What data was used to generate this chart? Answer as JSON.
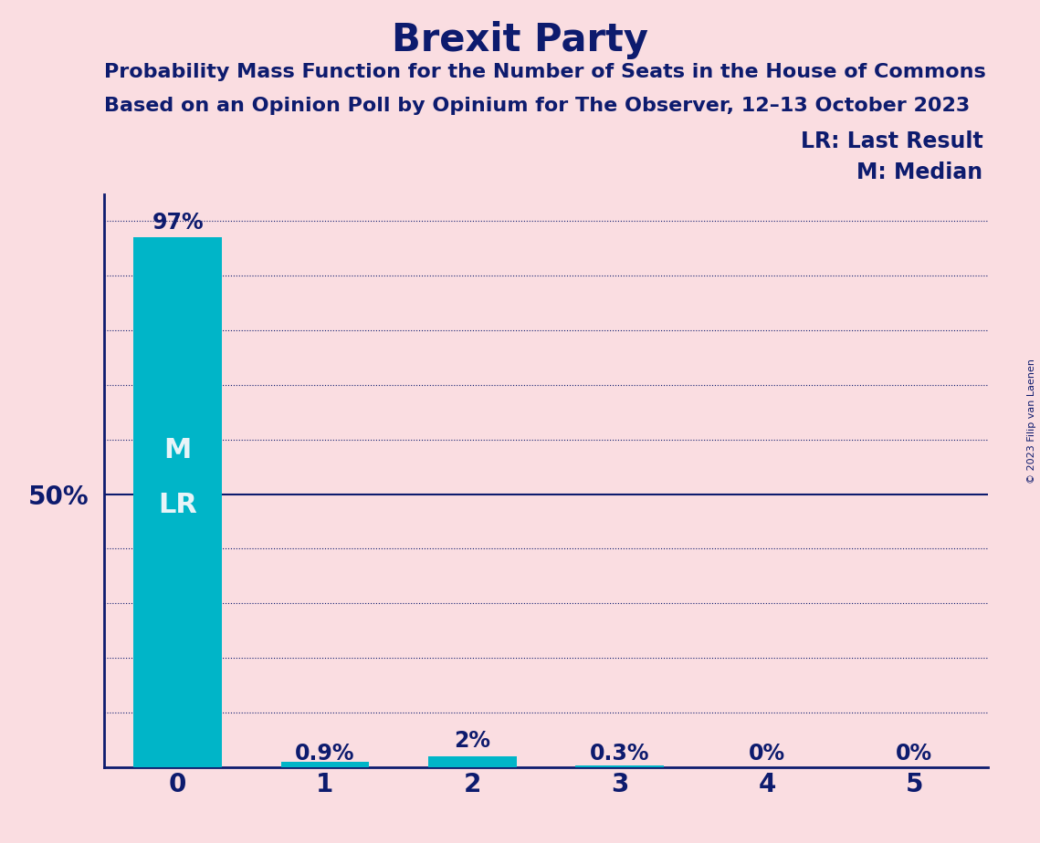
{
  "title": "Brexit Party",
  "subtitle1": "Probability Mass Function for the Number of Seats in the House of Commons",
  "subtitle2": "Based on an Opinion Poll by Opinium for The Observer, 12–13 October 2023",
  "copyright": "© 2023 Filip van Laenen",
  "categories": [
    0,
    1,
    2,
    3,
    4,
    5
  ],
  "values": [
    0.97,
    0.009,
    0.02,
    0.003,
    0.0,
    0.0
  ],
  "bar_labels": [
    "97%",
    "0.9%",
    "2%",
    "0.3%",
    "0%",
    "0%"
  ],
  "bar_color": "#00B5C8",
  "background_color": "#FADDE1",
  "title_color": "#0D1B6E",
  "axis_color": "#0D1B6E",
  "grid_color": "#0D1B6E",
  "label_inside_bar_color": "#E8F4F8",
  "ylabel_label": "50%",
  "ylabel_value": 0.5,
  "solid_line_value": 0.5,
  "legend_lr": "LR: Last Result",
  "legend_m": "M: Median",
  "ylim": [
    0,
    1.05
  ],
  "yticks": [
    0.0,
    0.1,
    0.2,
    0.3,
    0.4,
    0.5,
    0.6,
    0.7,
    0.8,
    0.9,
    1.0
  ],
  "median": 0,
  "last_result": 0,
  "title_fontsize": 30,
  "subtitle_fontsize": 16,
  "bar_label_fontsize": 17,
  "tick_fontsize": 20,
  "ylabel_fontsize": 20,
  "legend_fontsize": 17,
  "inside_label_fontsize": 22
}
